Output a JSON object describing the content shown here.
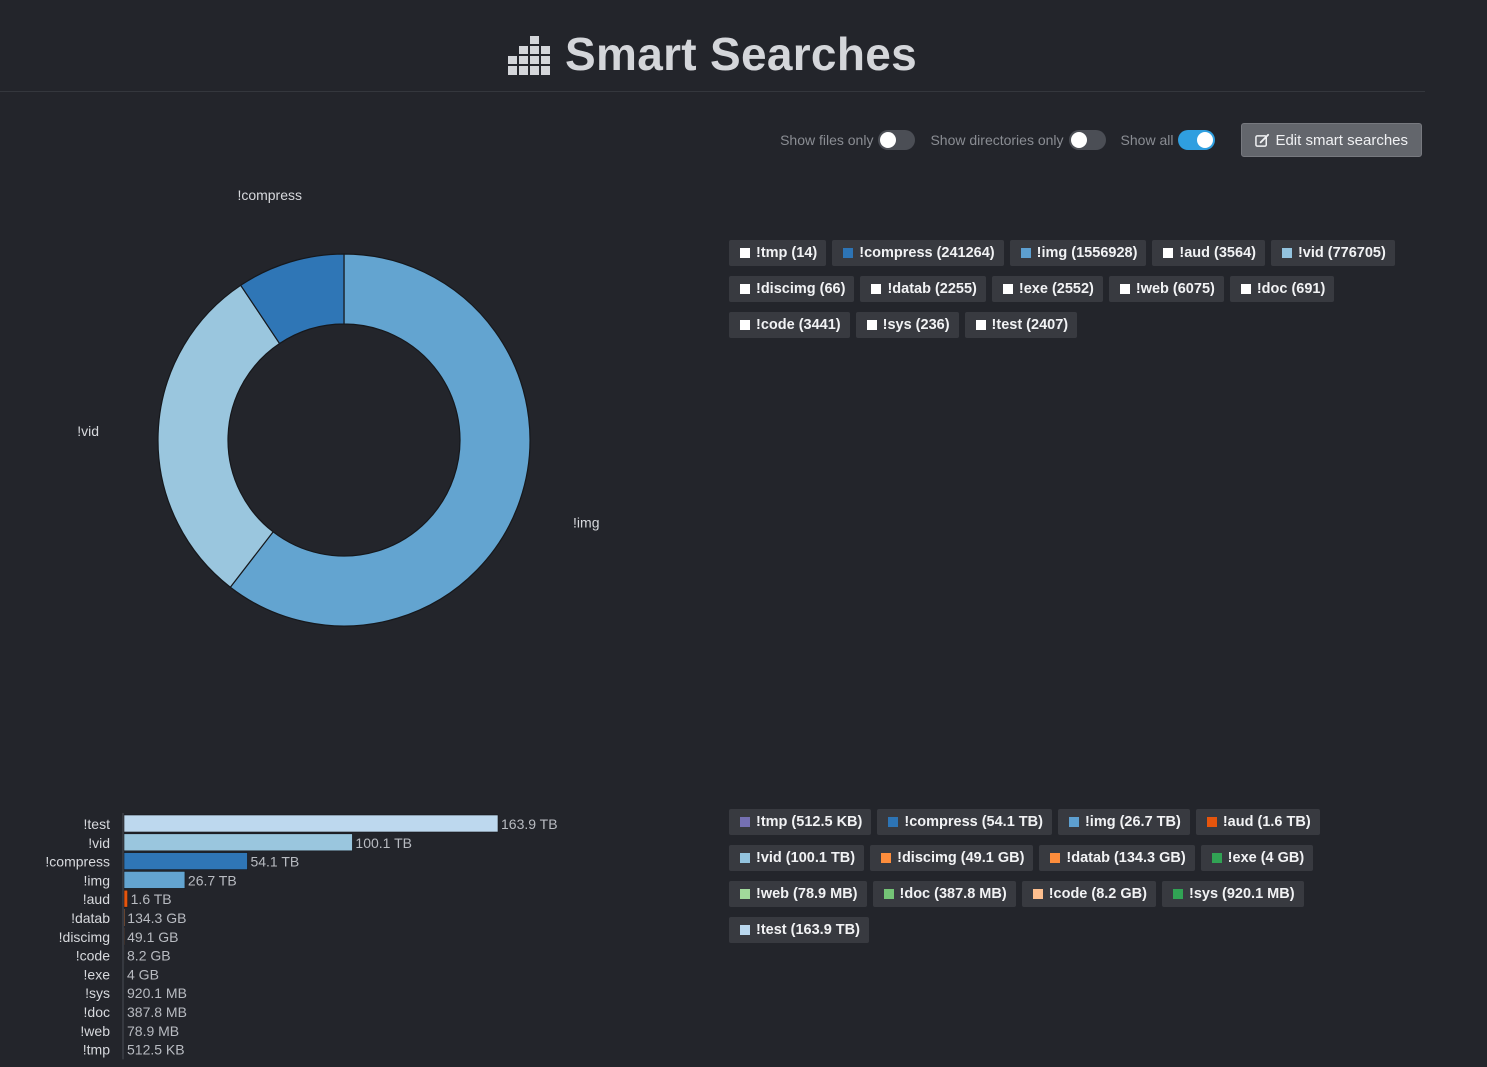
{
  "header": {
    "title": "Smart Searches",
    "icon": "bars-chart-icon"
  },
  "controls": {
    "files_only": {
      "label": "Show files only",
      "on": false
    },
    "dirs_only": {
      "label": "Show directories only",
      "on": false
    },
    "show_all": {
      "label": "Show all",
      "on": true
    },
    "edit_label": "Edit smart searches"
  },
  "count_legend": [
    {
      "label": "!tmp (14)",
      "color": "#ffffff"
    },
    {
      "label": "!compress (241264)",
      "color": "#2d74b5"
    },
    {
      "label": "!img (1556928)",
      "color": "#5d9fd0"
    },
    {
      "label": "!aud (3564)",
      "color": "#ffffff"
    },
    {
      "label": "!vid (776705)",
      "color": "#93c3de"
    },
    {
      "label": "!discimg (66)",
      "color": "#ffffff"
    },
    {
      "label": "!datab (2255)",
      "color": "#ffffff"
    },
    {
      "label": "!exe (2552)",
      "color": "#ffffff"
    },
    {
      "label": "!web (6075)",
      "color": "#ffffff"
    },
    {
      "label": "!doc (691)",
      "color": "#ffffff"
    },
    {
      "label": "!code (3441)",
      "color": "#ffffff"
    },
    {
      "label": "!sys (236)",
      "color": "#ffffff"
    },
    {
      "label": "!test (2407)",
      "color": "#ffffff"
    }
  ],
  "size_legend": [
    {
      "label": "!tmp (512.5 KB)",
      "color": "#7570b3"
    },
    {
      "label": "!compress (54.1 TB)",
      "color": "#2d74b5"
    },
    {
      "label": "!img (26.7 TB)",
      "color": "#5d9fd0"
    },
    {
      "label": "!aud (1.6 TB)",
      "color": "#e6550d"
    },
    {
      "label": "!vid (100.1 TB)",
      "color": "#93c3de"
    },
    {
      "label": "!discimg (49.1 GB)",
      "color": "#fd8d3c"
    },
    {
      "label": "!datab (134.3 GB)",
      "color": "#fd8d3c"
    },
    {
      "label": "!exe (4 GB)",
      "color": "#31a354"
    },
    {
      "label": "!web (78.9 MB)",
      "color": "#a1d99b"
    },
    {
      "label": "!doc (387.8 MB)",
      "color": "#74c476"
    },
    {
      "label": "!code (8.2 GB)",
      "color": "#fdbf8f"
    },
    {
      "label": "!sys (920.1 MB)",
      "color": "#31a354"
    },
    {
      "label": "!test (163.9 TB)",
      "color": "#b9d7ee"
    }
  ],
  "chart_data": [
    {
      "type": "pie",
      "variant": "donut",
      "categories": [
        "!img",
        "!vid",
        "!compress"
      ],
      "values": [
        1556928,
        776705,
        241264
      ],
      "colors": [
        "#63a4d0",
        "#9ac6de",
        "#2f76b6"
      ],
      "labels_shown": [
        "!compress",
        "!vid",
        "!img"
      ]
    },
    {
      "type": "bar",
      "orientation": "horizontal",
      "unit": "TB",
      "categories": [
        "!test",
        "!vid",
        "!compress",
        "!img",
        "!aud",
        "!datab",
        "!discimg",
        "!code",
        "!exe",
        "!sys",
        "!doc",
        "!web",
        "!tmp"
      ],
      "values": [
        163.9,
        100.1,
        54.1,
        26.7,
        1.6,
        0.1343,
        0.0491,
        0.0082,
        0.004,
        0.00092,
        0.00039,
        8e-05,
        5e-07
      ],
      "value_labels": [
        "163.9 TB",
        "100.1 TB",
        "54.1 TB",
        "26.7 TB",
        "1.6 TB",
        "134.3 GB",
        "49.1 GB",
        "8.2 GB",
        "4 GB",
        "920.1 MB",
        "387.8 MB",
        "78.9 MB",
        "512.5 KB"
      ],
      "colors": [
        "#bdd8ee",
        "#9ac6de",
        "#2f76b6",
        "#63a4d0",
        "#e6550d",
        "#fd8d3c",
        "#fd8d3c",
        "#fdbf8f",
        "#31a354",
        "#31a354",
        "#74c476",
        "#a1d99b",
        "#7570b3"
      ]
    }
  ]
}
